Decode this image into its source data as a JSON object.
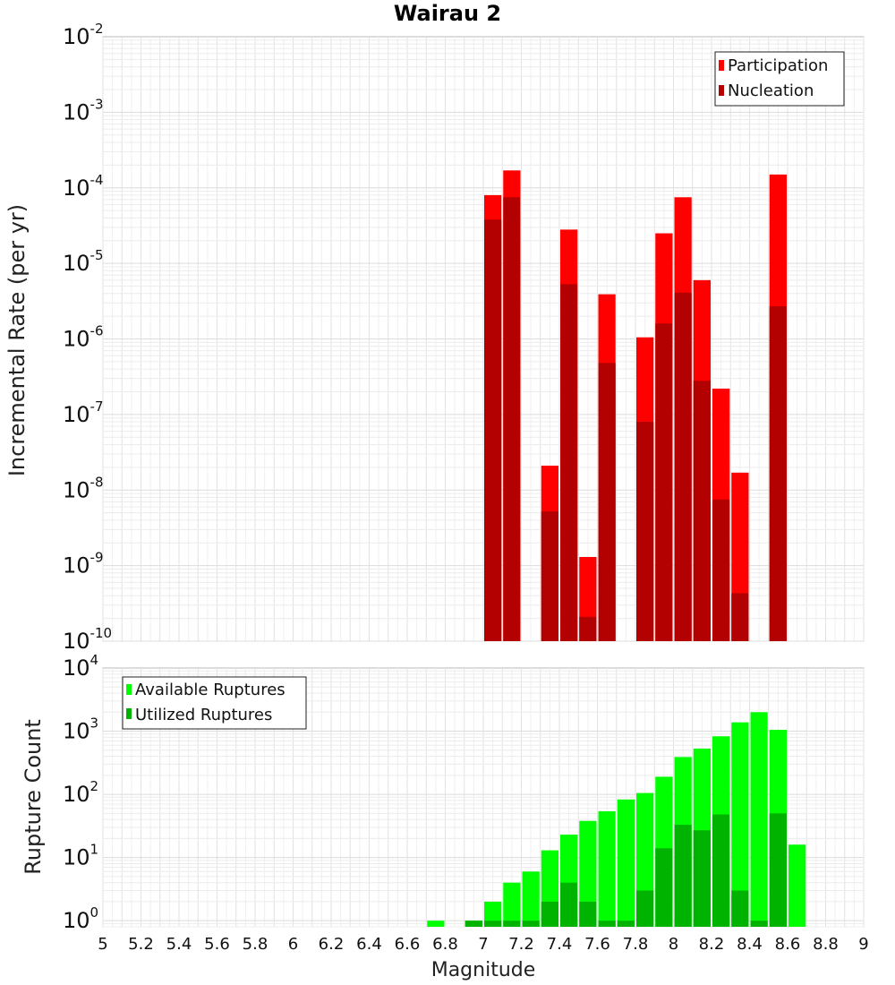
{
  "chart_data": [
    {
      "type": "bar",
      "title": "Wairau 2",
      "ylabel": "Incremental Rate (per yr)",
      "xlabel": "",
      "yscale": "log",
      "ylim": [
        1e-10,
        0.01
      ],
      "xlim": [
        5,
        9
      ],
      "grid": true,
      "legend_position": "top-right",
      "bar_width": 0.1,
      "series": [
        {
          "name": "Participation",
          "color": "#ff0000",
          "x": [
            7.05,
            7.15,
            7.35,
            7.45,
            7.55,
            7.65,
            7.85,
            7.95,
            8.05,
            8.15,
            8.25,
            8.35,
            8.55
          ],
          "values": [
            8e-05,
            0.00017,
            2.1e-08,
            2.8e-05,
            1.3e-09,
            3.9e-06,
            1.05e-06,
            2.5e-05,
            7.5e-05,
            6e-06,
            2.2e-07,
            1.7e-08,
            0.00015
          ]
        },
        {
          "name": "Nucleation",
          "color": "#b30000",
          "x": [
            7.05,
            7.15,
            7.35,
            7.45,
            7.55,
            7.65,
            7.85,
            7.95,
            8.05,
            8.15,
            8.25,
            8.35,
            8.55
          ],
          "values": [
            3.8e-05,
            7.5e-05,
            5.2e-09,
            5.3e-06,
            2.1e-10,
            4.8e-07,
            8e-08,
            1.6e-06,
            4.1e-06,
            2.8e-07,
            7.5e-09,
            4.3e-10,
            2.7e-06
          ]
        }
      ],
      "y_ticks": [
        {
          "base": "10",
          "exp": "-10",
          "value": 1e-10
        },
        {
          "base": "10",
          "exp": "-9",
          "value": 1e-09
        },
        {
          "base": "10",
          "exp": "-8",
          "value": 1e-08
        },
        {
          "base": "10",
          "exp": "-7",
          "value": 1e-07
        },
        {
          "base": "10",
          "exp": "-6",
          "value": 1e-06
        },
        {
          "base": "10",
          "exp": "-5",
          "value": 1e-05
        },
        {
          "base": "10",
          "exp": "-4",
          "value": 0.0001
        },
        {
          "base": "10",
          "exp": "-3",
          "value": 0.001
        },
        {
          "base": "10",
          "exp": "-2",
          "value": 0.01
        }
      ]
    },
    {
      "type": "bar",
      "title": "",
      "ylabel": "Rupture Count",
      "xlabel": "Magnitude",
      "yscale": "log",
      "ylim": [
        0.8,
        10000
      ],
      "xlim": [
        5,
        9
      ],
      "grid": true,
      "legend_position": "top-left",
      "bar_width": 0.1,
      "series": [
        {
          "name": "Available Ruptures",
          "color": "#00ff00",
          "x": [
            6.75,
            6.95,
            7.05,
            7.15,
            7.25,
            7.35,
            7.45,
            7.55,
            7.65,
            7.75,
            7.85,
            7.95,
            8.05,
            8.15,
            8.25,
            8.35,
            8.45,
            8.55,
            8.65
          ],
          "values": [
            1,
            1,
            2,
            4,
            6,
            13,
            23,
            38,
            54,
            83,
            105,
            190,
            390,
            530,
            830,
            1380,
            2000,
            1050,
            16
          ]
        },
        {
          "name": "Utilized Ruptures",
          "color": "#00b300",
          "x": [
            6.95,
            7.05,
            7.15,
            7.25,
            7.35,
            7.45,
            7.55,
            7.65,
            7.75,
            7.85,
            7.95,
            8.05,
            8.15,
            8.25,
            8.35,
            8.45,
            8.55
          ],
          "values": [
            1,
            1,
            1,
            1,
            2,
            4,
            2,
            1,
            1,
            3,
            14,
            33,
            27,
            48,
            3,
            1,
            50
          ]
        }
      ],
      "y_ticks": [
        {
          "base": "10",
          "exp": "0",
          "value": 1
        },
        {
          "base": "10",
          "exp": "1",
          "value": 10
        },
        {
          "base": "10",
          "exp": "2",
          "value": 100
        },
        {
          "base": "10",
          "exp": "3",
          "value": 1000
        },
        {
          "base": "10",
          "exp": "4",
          "value": 10000
        }
      ],
      "x_ticks": [
        "5",
        "5.2",
        "5.4",
        "5.6",
        "5.8",
        "6",
        "6.2",
        "6.4",
        "6.6",
        "6.8",
        "7",
        "7.2",
        "7.4",
        "7.6",
        "7.8",
        "8",
        "8.2",
        "8.4",
        "8.6",
        "8.8",
        "9"
      ]
    }
  ]
}
